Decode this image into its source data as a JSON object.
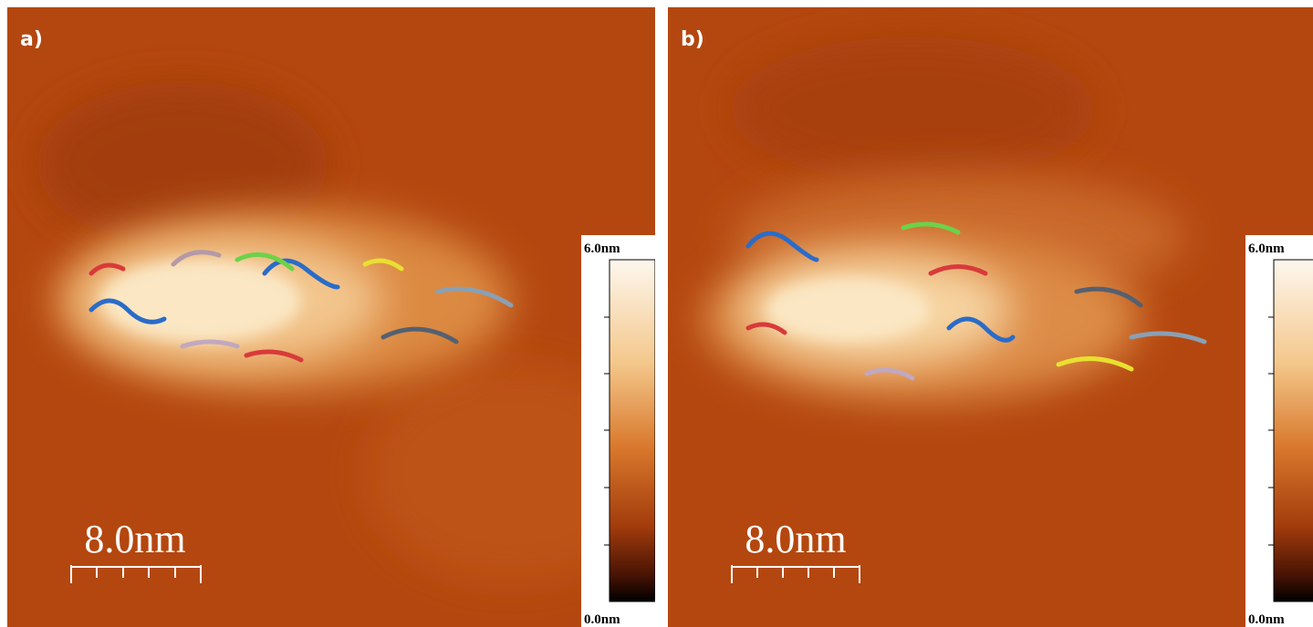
{
  "panels": [
    {
      "label": "a)",
      "scale_bar": "8.0nm",
      "colorbar_top": "6.0nm",
      "colorbar_bottom": "0.0nm"
    },
    {
      "label": "b)",
      "scale_bar": "8.0nm",
      "colorbar_top": "6.0nm",
      "colorbar_bottom": "0.0nm"
    }
  ]
}
